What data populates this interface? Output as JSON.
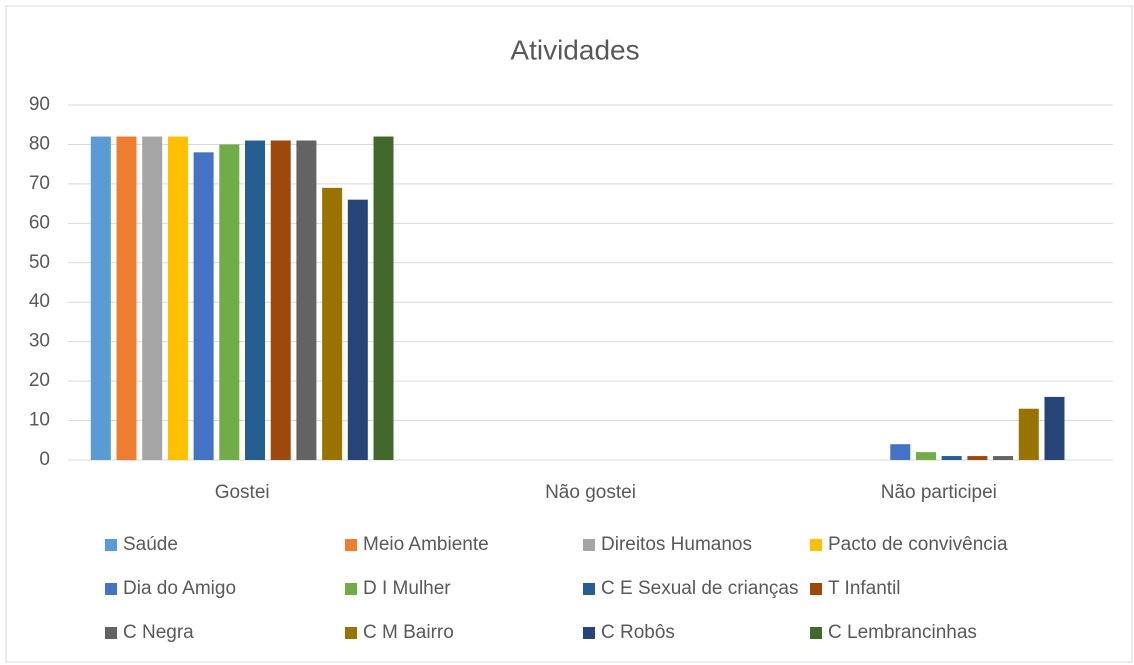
{
  "chart_data": {
    "type": "bar",
    "title": "Atividades",
    "categories": [
      "Gostei",
      "Não gostei",
      "Não participei"
    ],
    "series": [
      {
        "name": "Saúde",
        "color": "#5b9bd5",
        "values": [
          82,
          0,
          0
        ]
      },
      {
        "name": "Meio Ambiente",
        "color": "#ed7d31",
        "values": [
          82,
          0,
          0
        ]
      },
      {
        "name": "Direitos Humanos",
        "color": "#a5a5a5",
        "values": [
          82,
          0,
          0
        ]
      },
      {
        "name": "Pacto de convivência",
        "color": "#ffc000",
        "values": [
          82,
          0,
          0
        ]
      },
      {
        "name": "Dia do Amigo",
        "color": "#4472c4",
        "values": [
          78,
          0,
          4
        ]
      },
      {
        "name": "D I Mulher",
        "color": "#70ad47",
        "values": [
          80,
          0,
          2
        ]
      },
      {
        "name": "C E Sexual de crianças",
        "color": "#255e91",
        "values": [
          81,
          0,
          1
        ]
      },
      {
        "name": "T Infantil",
        "color": "#9e480e",
        "values": [
          81,
          0,
          1
        ]
      },
      {
        "name": "C Negra",
        "color": "#636363",
        "values": [
          81,
          0,
          1
        ]
      },
      {
        "name": "C M Bairro",
        "color": "#997300",
        "values": [
          69,
          0,
          13
        ]
      },
      {
        "name": "C Robôs",
        "color": "#264478",
        "values": [
          66,
          0,
          16
        ]
      },
      {
        "name": "C Lembrancinhas",
        "color": "#43682b",
        "values": [
          82,
          0,
          0
        ]
      }
    ],
    "ylim": [
      0,
      90
    ],
    "yticks": [
      0,
      10,
      20,
      30,
      40,
      50,
      60,
      70,
      80,
      90
    ],
    "grid": true,
    "legend": "bottom"
  }
}
